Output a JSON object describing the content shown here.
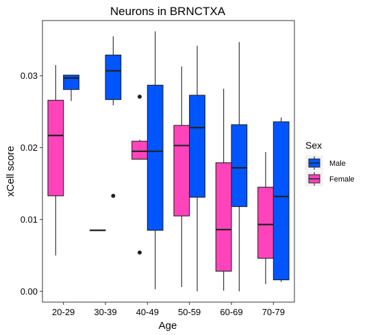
{
  "chart_data": {
    "type": "boxplot",
    "title": "Neurons in BRNCTXA",
    "xlabel": "Age",
    "ylabel": "xCell score",
    "categories": [
      "20-29",
      "30-39",
      "40-49",
      "50-59",
      "60-69",
      "70-79"
    ],
    "ylim": [
      -0.0015,
      0.0377
    ],
    "yticks": [
      0.0,
      0.01,
      0.02,
      0.03
    ],
    "ytick_labels": [
      "0.00",
      "0.01",
      "0.02",
      "0.03"
    ],
    "grid": false,
    "legend": {
      "title": "Sex",
      "position": "right",
      "entries": [
        {
          "label": "Male",
          "color": "#0055FF"
        },
        {
          "label": "Female",
          "color": "#FF44BB"
        }
      ]
    },
    "series": [
      {
        "name": "Female",
        "color": "#FF44BB",
        "boxes": [
          {
            "category": "20-29",
            "whisker_low": 0.005,
            "q1": 0.0133,
            "median": 0.0217,
            "q3": 0.0266,
            "whisker_high": 0.0315,
            "outliers": []
          },
          {
            "category": "30-39",
            "whisker_low": 0.0085,
            "q1": 0.0085,
            "median": 0.0085,
            "q3": 0.0085,
            "whisker_high": 0.0085,
            "outliers": []
          },
          {
            "category": "40-49",
            "whisker_low": 0.0184,
            "q1": 0.0184,
            "median": 0.0195,
            "q3": 0.0209,
            "whisker_high": 0.0211,
            "outliers": [
              0.0271,
              0.0054
            ]
          },
          {
            "category": "50-59",
            "whisker_low": 0.0006,
            "q1": 0.0105,
            "median": 0.0203,
            "q3": 0.0231,
            "whisker_high": 0.0313,
            "outliers": []
          },
          {
            "category": "60-69",
            "whisker_low": 0.0001,
            "q1": 0.0028,
            "median": 0.0086,
            "q3": 0.0179,
            "whisker_high": 0.0282,
            "outliers": []
          },
          {
            "category": "70-79",
            "whisker_low": 0.001,
            "q1": 0.0046,
            "median": 0.0093,
            "q3": 0.0145,
            "whisker_high": 0.0194,
            "outliers": []
          }
        ]
      },
      {
        "name": "Male",
        "color": "#0055FF",
        "boxes": [
          {
            "category": "20-29",
            "whisker_low": 0.0265,
            "q1": 0.0281,
            "median": 0.0297,
            "q3": 0.0301,
            "whisker_high": 0.0301,
            "outliers": []
          },
          {
            "category": "30-39",
            "whisker_low": 0.0259,
            "q1": 0.0267,
            "median": 0.0307,
            "q3": 0.0329,
            "whisker_high": 0.0355,
            "outliers": [
              0.0133
            ]
          },
          {
            "category": "40-49",
            "whisker_low": 0.0003,
            "q1": 0.0085,
            "median": 0.0195,
            "q3": 0.0287,
            "whisker_high": 0.0362,
            "outliers": []
          },
          {
            "category": "50-59",
            "whisker_low": 0.0,
            "q1": 0.0131,
            "median": 0.0228,
            "q3": 0.0273,
            "whisker_high": 0.0342,
            "outliers": []
          },
          {
            "category": "60-69",
            "whisker_low": 0.0,
            "q1": 0.0118,
            "median": 0.0172,
            "q3": 0.0232,
            "whisker_high": 0.0347,
            "outliers": []
          },
          {
            "category": "70-79",
            "whisker_low": 0.0013,
            "q1": 0.0016,
            "median": 0.0132,
            "q3": 0.0236,
            "whisker_high": 0.0242,
            "outliers": []
          }
        ]
      }
    ]
  }
}
